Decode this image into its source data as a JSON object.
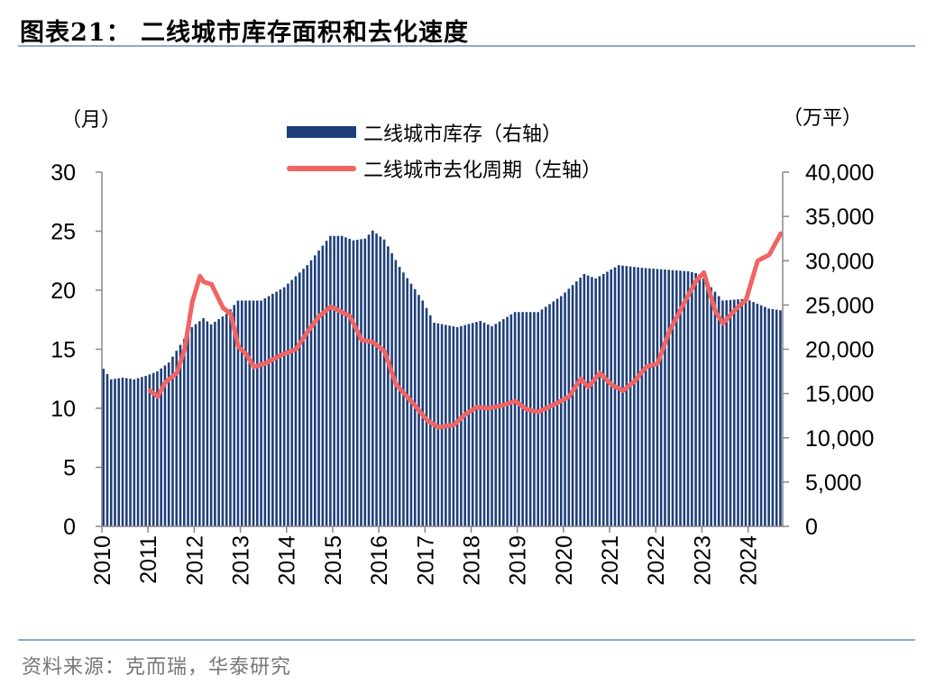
{
  "header": {
    "title": "图表21：  二线城市库存面积和去化速度"
  },
  "footer": {
    "source": "资料来源：克而瑞，华泰研究"
  },
  "chart_data": {
    "type": "bar+line",
    "title": "二线城市库存面积和去化速度",
    "left_axis": {
      "unit": "（月）",
      "ticks": [
        "0",
        "5",
        "10",
        "15",
        "20",
        "25",
        "30"
      ],
      "range": [
        0,
        30
      ]
    },
    "right_axis": {
      "unit": "（万平）",
      "ticks": [
        "0",
        "5,000",
        "10,000",
        "15,000",
        "20,000",
        "25,000",
        "30,000",
        "35,000",
        "40,000"
      ],
      "range": [
        0,
        40000
      ]
    },
    "x_axis": {
      "ticks": [
        "2010",
        "2011",
        "2012",
        "2013",
        "2014",
        "2015",
        "2016",
        "2017",
        "2018",
        "2019",
        "2020",
        "2021",
        "2022",
        "2023",
        "2024"
      ],
      "start": 2010.0,
      "end": 2024.75
    },
    "legend": {
      "placement": "top-center",
      "bar_label": "二线城市库存（右轴）",
      "line_label": "二线城市去化周期（左轴）"
    },
    "colors": {
      "bar": "#1F3F7A",
      "line": "#F06464",
      "axis": "#888888"
    },
    "bar_series": {
      "name": "二线城市库存（右轴）",
      "axis": "right",
      "frequency": "monthly",
      "start": "2010-01",
      "keyframes": [
        [
          "2010-01",
          17800
        ],
        [
          "2010-03",
          16600
        ],
        [
          "2010-06",
          16800
        ],
        [
          "2010-09",
          16600
        ],
        [
          "2010-12",
          17000
        ],
        [
          "2011-03",
          17500
        ],
        [
          "2011-06",
          18500
        ],
        [
          "2011-09",
          20500
        ],
        [
          "2011-12",
          22500
        ],
        [
          "2012-03",
          23500
        ],
        [
          "2012-05",
          22800
        ],
        [
          "2012-09",
          24000
        ],
        [
          "2012-12",
          25500
        ],
        [
          "2013-06",
          25500
        ],
        [
          "2013-12",
          27000
        ],
        [
          "2014-06",
          29500
        ],
        [
          "2014-12",
          32800
        ],
        [
          "2015-03",
          32800
        ],
        [
          "2015-06",
          32300
        ],
        [
          "2015-09",
          32500
        ],
        [
          "2015-11",
          33400
        ],
        [
          "2016-02",
          32400
        ],
        [
          "2016-06",
          29300
        ],
        [
          "2016-12",
          25500
        ],
        [
          "2017-03",
          23000
        ],
        [
          "2017-09",
          22500
        ],
        [
          "2018-03",
          23200
        ],
        [
          "2018-06",
          22600
        ],
        [
          "2018-12",
          24200
        ],
        [
          "2019-06",
          24200
        ],
        [
          "2019-12",
          26000
        ],
        [
          "2020-06",
          28500
        ],
        [
          "2020-09",
          28000
        ],
        [
          "2021-03",
          29500
        ],
        [
          "2021-09",
          29200
        ],
        [
          "2022-03",
          29000
        ],
        [
          "2022-09",
          28800
        ],
        [
          "2022-12",
          28500
        ],
        [
          "2023-06",
          25500
        ],
        [
          "2023-12",
          25700
        ],
        [
          "2024-06",
          24600
        ],
        [
          "2024-09",
          24400
        ]
      ]
    },
    "line_series": {
      "name": "二线城市去化周期（左轴）",
      "axis": "left",
      "frequency": "monthly",
      "keyframes": [
        [
          "2011-01",
          11.5
        ],
        [
          "2011-03",
          11.0
        ],
        [
          "2011-05",
          12.2
        ],
        [
          "2011-08",
          13.0
        ],
        [
          "2011-10",
          15.0
        ],
        [
          "2011-12",
          19.0
        ],
        [
          "2012-02",
          21.2
        ],
        [
          "2012-03",
          20.7
        ],
        [
          "2012-05",
          20.5
        ],
        [
          "2012-08",
          18.5
        ],
        [
          "2012-10",
          18.0
        ],
        [
          "2012-12",
          15.2
        ],
        [
          "2013-02",
          14.6
        ],
        [
          "2013-04",
          13.5
        ],
        [
          "2013-07",
          13.8
        ],
        [
          "2013-11",
          14.5
        ],
        [
          "2014-03",
          15.0
        ],
        [
          "2014-06",
          16.5
        ],
        [
          "2014-09",
          17.8
        ],
        [
          "2014-12",
          18.6
        ],
        [
          "2015-02",
          18.3
        ],
        [
          "2015-05",
          17.8
        ],
        [
          "2015-08",
          15.8
        ],
        [
          "2015-11",
          15.6
        ],
        [
          "2016-02",
          14.8
        ],
        [
          "2016-05",
          12.0
        ],
        [
          "2016-07",
          11.3
        ],
        [
          "2016-10",
          10.2
        ],
        [
          "2017-01",
          9.0
        ],
        [
          "2017-04",
          8.4
        ],
        [
          "2017-08",
          8.6
        ],
        [
          "2017-11",
          9.5
        ],
        [
          "2018-02",
          10.1
        ],
        [
          "2018-05",
          10.0
        ],
        [
          "2018-08",
          10.2
        ],
        [
          "2018-12",
          10.6
        ],
        [
          "2019-03",
          9.9
        ],
        [
          "2019-06",
          9.7
        ],
        [
          "2019-10",
          10.3
        ],
        [
          "2020-02",
          11.0
        ],
        [
          "2020-05",
          12.5
        ],
        [
          "2020-07",
          11.8
        ],
        [
          "2020-10",
          13.0
        ],
        [
          "2021-01",
          12.0
        ],
        [
          "2021-04",
          11.5
        ],
        [
          "2021-07",
          12.3
        ],
        [
          "2021-10",
          13.5
        ],
        [
          "2022-01",
          13.8
        ],
        [
          "2022-04",
          16.5
        ],
        [
          "2022-08",
          19.0
        ],
        [
          "2022-11",
          20.8
        ],
        [
          "2023-01",
          21.5
        ],
        [
          "2023-04",
          18.2
        ],
        [
          "2023-06",
          17.2
        ],
        [
          "2023-09",
          18.3
        ],
        [
          "2023-12",
          19.2
        ],
        [
          "2024-03",
          22.5
        ],
        [
          "2024-06",
          23.0
        ],
        [
          "2024-09",
          24.8
        ]
      ]
    }
  }
}
